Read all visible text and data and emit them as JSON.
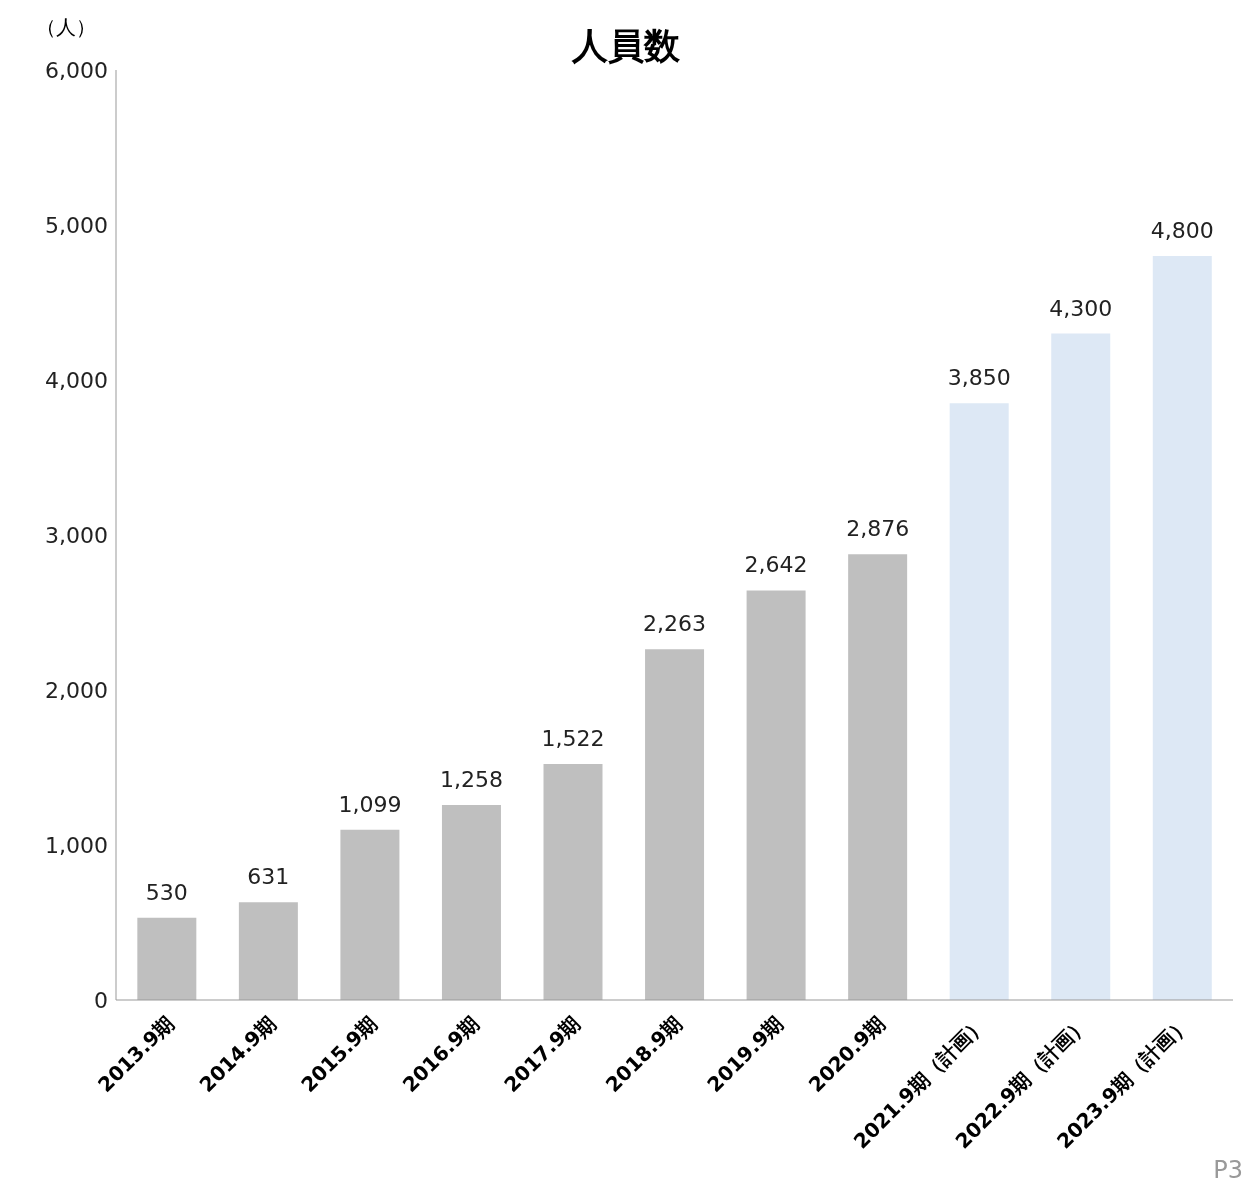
{
  "chart_data": {
    "type": "bar",
    "title": "人員数",
    "ylabel": "（人）",
    "categories": [
      "2013.9期",
      "2014.9期",
      "2015.9期",
      "2016.9期",
      "2017.9期",
      "2018.9期",
      "2019.9期",
      "2020.9期",
      "2021.9期（計画）",
      "2022.9期（計画）",
      "2023.9期（計画）"
    ],
    "values": [
      530,
      631,
      1099,
      1258,
      1522,
      2263,
      2642,
      2876,
      3850,
      4300,
      4800
    ],
    "colors": [
      "#bfbfbf",
      "#bfbfbf",
      "#bfbfbf",
      "#bfbfbf",
      "#bfbfbf",
      "#bfbfbf",
      "#bfbfbf",
      "#bfbfbf",
      "#dde8f5",
      "#dde8f5",
      "#dde8f5"
    ],
    "value_labels": [
      "530",
      "631",
      "1,099",
      "1,258",
      "1,522",
      "2,263",
      "2,642",
      "2,876",
      "3,850",
      "4,300",
      "4,800"
    ],
    "ylim": [
      0,
      6000
    ],
    "yticks": [
      {
        "value": 0,
        "label": "0"
      },
      {
        "value": 1000,
        "label": "1,000"
      },
      {
        "value": 2000,
        "label": "2,000"
      },
      {
        "value": 3000,
        "label": "3,000"
      },
      {
        "value": 4000,
        "label": "4,000"
      },
      {
        "value": 5000,
        "label": "5,000"
      },
      {
        "value": 6000,
        "label": "6,000"
      }
    ],
    "grid": false,
    "legend": false,
    "annotations": [
      "P3"
    ]
  }
}
